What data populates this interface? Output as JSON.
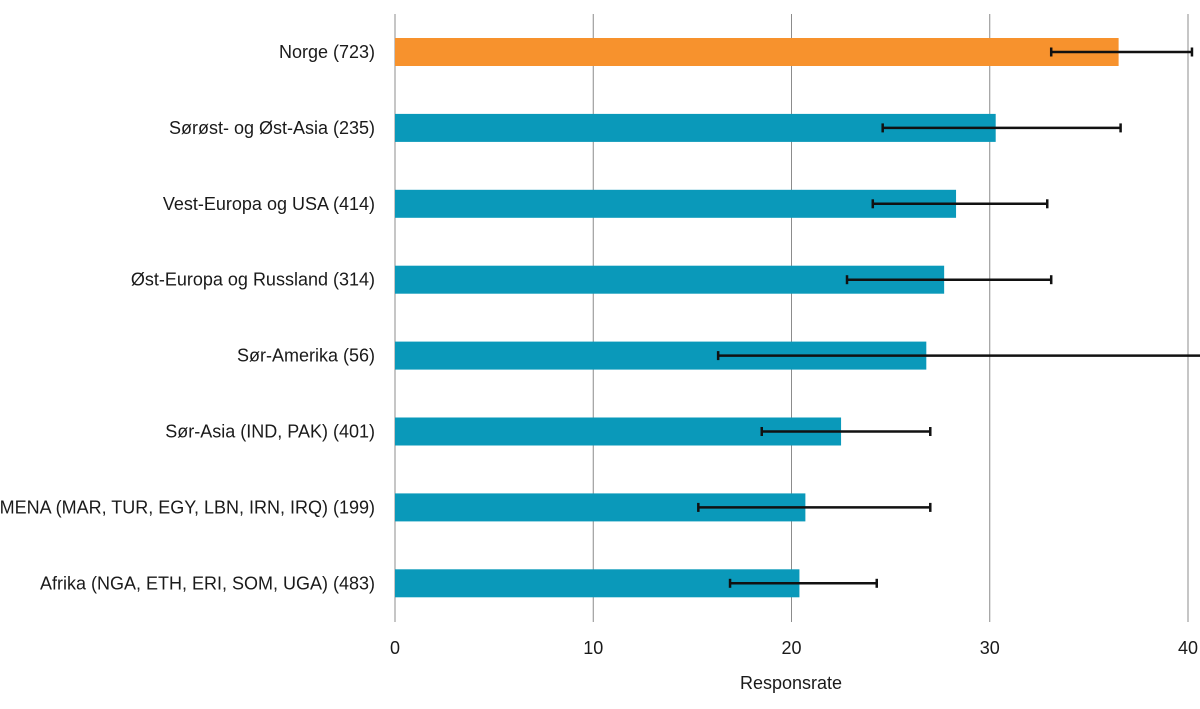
{
  "chart_data": {
    "type": "bar",
    "orientation": "horizontal",
    "title": "",
    "xlabel": "Responsrate",
    "ylabel": "",
    "xlim": [
      0,
      40
    ],
    "xticks": [
      0,
      10,
      20,
      30,
      40
    ],
    "grid": true,
    "categories": [
      "Norge (723)",
      "Sørøst- og Øst-Asia (235)",
      "Vest-Europa og USA (414)",
      "Øst-Europa og Russland (314)",
      "Sør-Amerika (56)",
      "Sør-Asia (IND, PAK) (401)",
      "MENA (MAR, TUR, EGY, LBN, IRN, IRQ) (199)",
      "Afrika (NGA, ETH, ERI, SOM, UGA) (483)"
    ],
    "values": [
      36.5,
      30.3,
      28.3,
      27.7,
      26.8,
      22.5,
      20.7,
      20.4
    ],
    "error_low": [
      33.1,
      24.6,
      24.1,
      22.8,
      16.3,
      18.5,
      15.3,
      16.9
    ],
    "error_high": [
      40.2,
      36.6,
      32.9,
      33.1,
      41.0,
      27.0,
      27.0,
      24.3
    ],
    "colors": [
      "#f7922d",
      "#0a99ba",
      "#0a99ba",
      "#0a99ba",
      "#0a99ba",
      "#0a99ba",
      "#0a99ba",
      "#0a99ba"
    ]
  }
}
